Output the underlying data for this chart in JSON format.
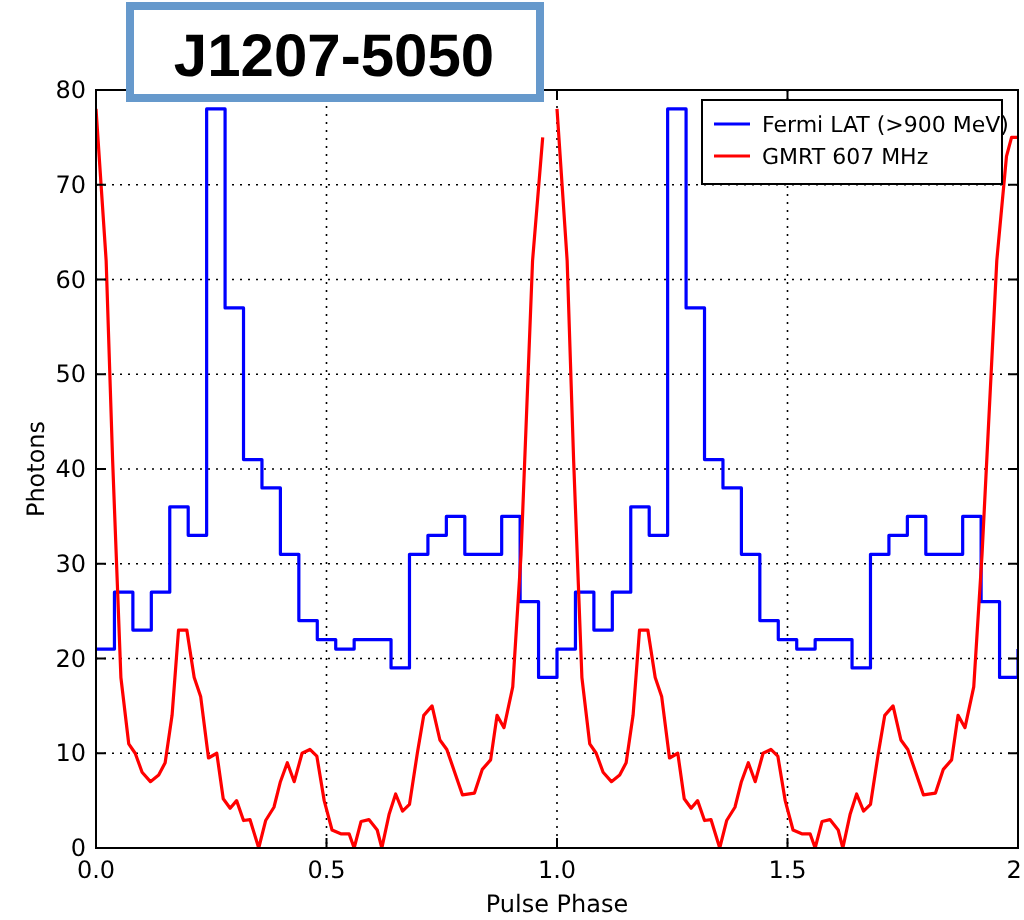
{
  "chart_data": {
    "type": "line",
    "title": "J1207-5050",
    "xlabel": "Pulse Phase",
    "ylabel": "Photons",
    "xlim": [
      0,
      2
    ],
    "ylim": [
      0,
      80
    ],
    "xticks": [
      {
        "value": 0,
        "label": "0.0"
      },
      {
        "value": 0.5,
        "label": "0.5"
      },
      {
        "value": 1,
        "label": "1.0"
      },
      {
        "value": 1.5,
        "label": "1.5"
      },
      {
        "value": 2,
        "label": "2."
      }
    ],
    "yticks": [
      0,
      10,
      20,
      30,
      40,
      50,
      60,
      70,
      80
    ],
    "grid": true,
    "legend": "top right",
    "series": [
      {
        "name": "Fermi LAT (>900 MeV)",
        "type": "step",
        "color": "#0000ff",
        "x": [
          0,
          0.04,
          0.08,
          0.12,
          0.16,
          0.2,
          0.24,
          0.28,
          0.32,
          0.36,
          0.4,
          0.44,
          0.48,
          0.52,
          0.56,
          0.6,
          0.64,
          0.68,
          0.72,
          0.76,
          0.8,
          0.84,
          0.88,
          0.92,
          0.96,
          1,
          1.04,
          1.08,
          1.12,
          1.16,
          1.2,
          1.24,
          1.28,
          1.32,
          1.36,
          1.4,
          1.44,
          1.48,
          1.52,
          1.56,
          1.6,
          1.64,
          1.68,
          1.72,
          1.76,
          1.8,
          1.84,
          1.88,
          1.92,
          1.96,
          2
        ],
        "values": [
          21,
          27,
          23,
          27,
          36,
          33,
          78,
          57,
          41,
          38,
          31,
          24,
          22,
          21,
          22,
          22,
          19,
          31,
          33,
          35,
          31,
          31,
          35,
          26,
          18,
          21,
          27,
          23,
          27,
          36,
          33,
          78,
          57,
          41,
          38,
          31,
          24,
          22,
          21,
          22,
          22,
          19,
          31,
          33,
          35,
          31,
          31,
          35,
          26,
          18,
          21
        ]
      },
      {
        "name": "GMRT 607 MHz",
        "type": "line",
        "color": "#ff0000",
        "x": [
          0,
          0.022,
          0.036,
          0.054,
          0.071,
          0.085,
          0.1,
          0.118,
          0.136,
          0.15,
          0.165,
          0.179,
          0.197,
          0.213,
          0.227,
          0.244,
          0.262,
          0.276,
          0.291,
          0.305,
          0.32,
          0.334,
          0.353,
          0.368,
          0.386,
          0.4,
          0.415,
          0.43,
          0.447,
          0.464,
          0.479,
          0.495,
          0.512,
          0.531,
          0.549,
          0.56,
          0.575,
          0.592,
          0.61,
          0.62,
          0.636,
          0.65,
          0.665,
          0.68,
          0.697,
          0.711,
          0.729,
          0.746,
          0.761,
          0.778,
          0.795,
          0.821,
          0.838,
          0.856,
          0.87,
          0.885,
          0.904,
          0.922,
          0.947,
          0.969,
          0.986,
          1,
          1.022,
          1.036,
          1.054,
          1.071,
          1.085,
          1.1,
          1.118,
          1.136,
          1.15,
          1.165,
          1.179,
          1.197,
          1.213,
          1.227,
          1.244,
          1.262,
          1.276,
          1.291,
          1.305,
          1.32,
          1.334,
          1.353,
          1.368,
          1.386,
          1.4,
          1.415,
          1.43,
          1.447,
          1.464,
          1.479,
          1.495,
          1.512,
          1.531,
          1.549,
          1.56,
          1.575,
          1.592,
          1.61,
          1.62,
          1.636,
          1.65,
          1.665,
          1.68,
          1.697,
          1.711,
          1.729,
          1.746,
          1.761,
          1.778,
          1.795,
          1.821,
          1.838,
          1.856,
          1.87,
          1.885,
          1.904,
          1.922,
          1.954,
          1.975,
          1.986,
          2
        ],
        "values": [
          78,
          62,
          41,
          18,
          11,
          10,
          8,
          7,
          7.7,
          9,
          14,
          23,
          23,
          18,
          16,
          9.5,
          10,
          5.2,
          4.2,
          5,
          2.9,
          3,
          0,
          2.9,
          4.3,
          7,
          9,
          7,
          10,
          10.4,
          9.7,
          5,
          1.9,
          1.5,
          1.5,
          0,
          2.8,
          3,
          1.9,
          0,
          3.6,
          5.7,
          3.9,
          4.6,
          10,
          14,
          15,
          11.4,
          10.4,
          8,
          5.6,
          5.8,
          8.3,
          9.3,
          14,
          12.7,
          17,
          31,
          62,
          75,
          null,
          78,
          62,
          41,
          18,
          11,
          10,
          8,
          7,
          7.7,
          9,
          14,
          23,
          23,
          18,
          16,
          9.5,
          10,
          5.2,
          4.2,
          5,
          2.9,
          3,
          0,
          2.9,
          4.3,
          7,
          9,
          7,
          10,
          10.4,
          9.7,
          5,
          1.9,
          1.5,
          1.5,
          0,
          2.8,
          3,
          1.9,
          0,
          3.6,
          5.7,
          3.9,
          4.6,
          10,
          14,
          15,
          11.4,
          10.4,
          8,
          5.6,
          5.8,
          8.3,
          9.3,
          14,
          12.7,
          17,
          31,
          62,
          73,
          75,
          75
        ]
      }
    ]
  }
}
